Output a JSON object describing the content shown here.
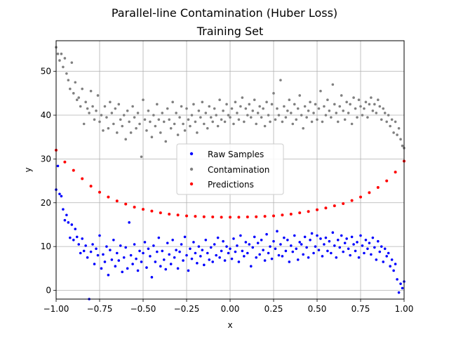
{
  "chart_data": {
    "type": "scatter",
    "title": "Parallel-line Contamination (Huber Loss)",
    "subtitle": "Training Set",
    "xlabel": "x",
    "ylabel": "y",
    "xlim": [
      -1.0,
      1.0
    ],
    "ylim": [
      -2.0,
      57.0
    ],
    "xticks": [
      -1.0,
      -0.75,
      -0.5,
      -0.25,
      0.0,
      0.25,
      0.5,
      0.75,
      1.0
    ],
    "xtick_labels": [
      "−1.00",
      "−0.75",
      "−0.50",
      "−0.25",
      "0.00",
      "0.25",
      "0.50",
      "0.75",
      "1.00"
    ],
    "yticks": [
      0,
      10,
      20,
      30,
      40,
      50
    ],
    "ytick_labels": [
      "0",
      "10",
      "20",
      "30",
      "40",
      "50"
    ],
    "grid": true,
    "legend_position": "center",
    "series": [
      {
        "name": "Raw Samples",
        "color": "#0000ff",
        "x": [
          -1.0,
          -0.99,
          -0.98,
          -0.97,
          -0.96,
          -0.95,
          -0.94,
          -0.93,
          -0.92,
          -0.91,
          -0.9,
          -0.89,
          -0.88,
          -0.87,
          -0.86,
          -0.85,
          -0.84,
          -0.83,
          -0.82,
          -0.81,
          -0.8,
          -0.79,
          -0.78,
          -0.77,
          -0.76,
          -0.75,
          -0.74,
          -0.73,
          -0.72,
          -0.71,
          -0.7,
          -0.69,
          -0.68,
          -0.67,
          -0.66,
          -0.65,
          -0.64,
          -0.63,
          -0.62,
          -0.61,
          -0.6,
          -0.59,
          -0.58,
          -0.57,
          -0.56,
          -0.55,
          -0.54,
          -0.53,
          -0.52,
          -0.51,
          -0.5,
          -0.49,
          -0.48,
          -0.47,
          -0.46,
          -0.45,
          -0.44,
          -0.43,
          -0.42,
          -0.41,
          -0.4,
          -0.39,
          -0.38,
          -0.37,
          -0.36,
          -0.35,
          -0.34,
          -0.33,
          -0.32,
          -0.31,
          -0.3,
          -0.29,
          -0.28,
          -0.27,
          -0.26,
          -0.25,
          -0.24,
          -0.23,
          -0.22,
          -0.21,
          -0.2,
          -0.19,
          -0.18,
          -0.17,
          -0.16,
          -0.15,
          -0.14,
          -0.13,
          -0.12,
          -0.11,
          -0.1,
          -0.09,
          -0.08,
          -0.07,
          -0.06,
          -0.05,
          -0.04,
          -0.03,
          -0.02,
          -0.01,
          0.0,
          0.01,
          0.02,
          0.03,
          0.04,
          0.05,
          0.06,
          0.07,
          0.08,
          0.09,
          0.1,
          0.11,
          0.12,
          0.13,
          0.14,
          0.15,
          0.16,
          0.17,
          0.18,
          0.19,
          0.2,
          0.21,
          0.22,
          0.23,
          0.24,
          0.25,
          0.26,
          0.27,
          0.28,
          0.29,
          0.3,
          0.31,
          0.32,
          0.33,
          0.34,
          0.35,
          0.36,
          0.37,
          0.38,
          0.39,
          0.4,
          0.41,
          0.42,
          0.43,
          0.44,
          0.45,
          0.46,
          0.47,
          0.48,
          0.49,
          0.5,
          0.51,
          0.52,
          0.53,
          0.54,
          0.55,
          0.56,
          0.57,
          0.58,
          0.59,
          0.6,
          0.61,
          0.62,
          0.63,
          0.64,
          0.65,
          0.66,
          0.67,
          0.68,
          0.69,
          0.7,
          0.71,
          0.72,
          0.73,
          0.74,
          0.75,
          0.76,
          0.77,
          0.78,
          0.79,
          0.8,
          0.81,
          0.82,
          0.83,
          0.84,
          0.85,
          0.86,
          0.87,
          0.88,
          0.89,
          0.9,
          0.91,
          0.92,
          0.93,
          0.94,
          0.95,
          0.96,
          0.97,
          0.98,
          0.99,
          1.0
        ],
        "y": [
          23.0,
          28.4,
          22.0,
          21.5,
          18.5,
          16.0,
          17.2,
          15.5,
          12.0,
          15.0,
          11.5,
          14.0,
          12.2,
          10.5,
          8.5,
          11.8,
          9.0,
          10.2,
          7.5,
          -2.0,
          8.8,
          10.5,
          6.0,
          9.5,
          8.0,
          12.5,
          5.0,
          8.2,
          6.5,
          10.0,
          3.5,
          9.2,
          7.0,
          11.5,
          5.5,
          8.5,
          6.8,
          10.2,
          4.2,
          7.5,
          9.8,
          5.0,
          15.5,
          8.0,
          6.0,
          10.5,
          7.2,
          4.5,
          9.0,
          6.5,
          8.5,
          11.0,
          5.2,
          9.5,
          7.8,
          3.0,
          10.2,
          6.5,
          8.8,
          12.0,
          5.5,
          9.0,
          7.0,
          4.8,
          10.8,
          8.2,
          6.0,
          11.5,
          7.5,
          9.2,
          5.0,
          8.8,
          10.5,
          6.8,
          12.2,
          8.0,
          4.5,
          9.5,
          7.2,
          11.0,
          8.5,
          6.2,
          10.0,
          7.8,
          9.2,
          5.8,
          11.5,
          8.5,
          7.0,
          9.8,
          6.5,
          10.5,
          8.0,
          12.0,
          7.5,
          9.0,
          11.2,
          6.8,
          10.0,
          8.5,
          9.5,
          7.2,
          11.8,
          8.8,
          10.2,
          6.5,
          12.5,
          9.0,
          7.8,
          11.0,
          8.5,
          10.5,
          5.5,
          9.8,
          12.2,
          7.5,
          10.8,
          8.2,
          11.5,
          9.2,
          6.8,
          12.8,
          8.5,
          10.0,
          7.2,
          11.2,
          9.5,
          13.5,
          8.0,
          10.5,
          7.8,
          12.0,
          9.0,
          11.5,
          6.5,
          10.2,
          8.8,
          12.5,
          9.5,
          7.0,
          11.0,
          10.5,
          8.2,
          12.2,
          9.8,
          7.5,
          11.5,
          13.0,
          8.5,
          10.0,
          12.5,
          9.2,
          11.8,
          7.8,
          10.5,
          12.0,
          9.0,
          11.2,
          8.5,
          13.2,
          10.2,
          7.5,
          11.5,
          9.8,
          12.5,
          8.8,
          10.8,
          11.8,
          9.5,
          8.0,
          12.2,
          10.5,
          9.0,
          11.0,
          7.5,
          12.5,
          10.2,
          8.5,
          11.5,
          9.5,
          10.8,
          8.2,
          12.0,
          9.8,
          7.0,
          11.2,
          8.8,
          10.0,
          6.5,
          9.5,
          7.8,
          8.5,
          5.5,
          7.0,
          4.5,
          6.0,
          2.5,
          -0.5,
          1.5,
          0.5,
          2.0
        ]
      },
      {
        "name": "Contamination",
        "color": "#808080",
        "x": [
          -1.0,
          -0.99,
          -0.98,
          -0.97,
          -0.96,
          -0.95,
          -0.94,
          -0.93,
          -0.92,
          -0.91,
          -0.9,
          -0.89,
          -0.88,
          -0.87,
          -0.86,
          -0.85,
          -0.84,
          -0.83,
          -0.82,
          -0.81,
          -0.8,
          -0.79,
          -0.78,
          -0.77,
          -0.76,
          -0.75,
          -0.74,
          -0.73,
          -0.72,
          -0.71,
          -0.7,
          -0.69,
          -0.68,
          -0.67,
          -0.66,
          -0.65,
          -0.64,
          -0.63,
          -0.62,
          -0.61,
          -0.6,
          -0.59,
          -0.58,
          -0.57,
          -0.56,
          -0.55,
          -0.54,
          -0.53,
          -0.52,
          -0.51,
          -0.5,
          -0.49,
          -0.48,
          -0.47,
          -0.46,
          -0.45,
          -0.44,
          -0.43,
          -0.42,
          -0.41,
          -0.4,
          -0.39,
          -0.38,
          -0.37,
          -0.36,
          -0.35,
          -0.34,
          -0.33,
          -0.32,
          -0.31,
          -0.3,
          -0.29,
          -0.28,
          -0.27,
          -0.26,
          -0.25,
          -0.24,
          -0.23,
          -0.22,
          -0.21,
          -0.2,
          -0.19,
          -0.18,
          -0.17,
          -0.16,
          -0.15,
          -0.14,
          -0.13,
          -0.12,
          -0.11,
          -0.1,
          -0.09,
          -0.08,
          -0.07,
          -0.06,
          -0.05,
          -0.04,
          -0.03,
          -0.02,
          -0.01,
          0.0,
          0.01,
          0.02,
          0.03,
          0.04,
          0.05,
          0.06,
          0.07,
          0.08,
          0.09,
          0.1,
          0.11,
          0.12,
          0.13,
          0.14,
          0.15,
          0.16,
          0.17,
          0.18,
          0.19,
          0.2,
          0.21,
          0.22,
          0.23,
          0.24,
          0.25,
          0.26,
          0.27,
          0.28,
          0.29,
          0.3,
          0.31,
          0.32,
          0.33,
          0.34,
          0.35,
          0.36,
          0.37,
          0.38,
          0.39,
          0.4,
          0.41,
          0.42,
          0.43,
          0.44,
          0.45,
          0.46,
          0.47,
          0.48,
          0.49,
          0.5,
          0.51,
          0.52,
          0.53,
          0.54,
          0.55,
          0.56,
          0.57,
          0.58,
          0.59,
          0.6,
          0.61,
          0.62,
          0.63,
          0.64,
          0.65,
          0.66,
          0.67,
          0.68,
          0.69,
          0.7,
          0.71,
          0.72,
          0.73,
          0.74,
          0.75,
          0.76,
          0.77,
          0.78,
          0.79,
          0.8,
          0.81,
          0.82,
          0.83,
          0.84,
          0.85,
          0.86,
          0.87,
          0.88,
          0.89,
          0.9,
          0.91,
          0.92,
          0.93,
          0.94,
          0.95,
          0.96,
          0.97,
          0.98,
          0.99,
          1.0
        ],
        "y": [
          55.5,
          54.0,
          52.5,
          54.0,
          51.0,
          53.0,
          49.5,
          48.0,
          46.0,
          52.0,
          45.0,
          47.5,
          43.5,
          44.0,
          42.0,
          46.0,
          38.0,
          43.0,
          41.5,
          40.5,
          45.5,
          42.0,
          39.0,
          41.0,
          44.5,
          38.5,
          40.0,
          36.5,
          42.0,
          39.5,
          37.0,
          43.0,
          40.5,
          38.0,
          41.5,
          36.0,
          42.5,
          39.0,
          37.5,
          40.0,
          34.5,
          41.0,
          38.5,
          36.0,
          42.0,
          39.5,
          37.0,
          40.5,
          38.0,
          30.5,
          43.5,
          39.0,
          36.5,
          41.0,
          38.5,
          35.0,
          40.0,
          37.5,
          42.5,
          39.0,
          36.0,
          40.5,
          38.5,
          34.0,
          41.5,
          39.0,
          37.0,
          43.0,
          38.0,
          40.5,
          35.5,
          39.5,
          42.0,
          38.0,
          36.5,
          41.5,
          39.0,
          37.5,
          40.0,
          42.5,
          38.5,
          36.0,
          41.0,
          39.5,
          43.0,
          38.0,
          40.5,
          37.0,
          42.0,
          39.5,
          38.5,
          41.5,
          40.0,
          37.5,
          43.5,
          39.0,
          41.0,
          38.5,
          42.5,
          40.0,
          39.5,
          41.5,
          38.0,
          43.0,
          40.5,
          39.0,
          42.0,
          44.0,
          38.5,
          41.5,
          40.0,
          42.5,
          39.5,
          41.0,
          43.5,
          38.0,
          40.5,
          42.0,
          39.5,
          41.5,
          37.5,
          43.0,
          40.0,
          38.5,
          42.5,
          45.0,
          39.0,
          41.5,
          40.0,
          48.0,
          38.5,
          42.0,
          39.5,
          41.0,
          43.5,
          40.5,
          38.0,
          42.5,
          39.0,
          41.5,
          44.5,
          40.0,
          37.0,
          42.0,
          39.5,
          41.0,
          43.0,
          38.5,
          40.5,
          42.5,
          39.0,
          41.5,
          45.5,
          38.5,
          42.0,
          40.0,
          43.5,
          41.0,
          39.5,
          47.0,
          42.5,
          40.5,
          38.5,
          42.0,
          44.5,
          41.0,
          39.0,
          43.0,
          40.5,
          42.5,
          38.0,
          44.0,
          41.5,
          39.5,
          43.5,
          42.0,
          40.0,
          41.5,
          43.0,
          39.5,
          42.5,
          44.0,
          41.0,
          42.5,
          40.5,
          43.5,
          42.0,
          39.0,
          41.5,
          40.5,
          38.5,
          40.0,
          37.5,
          39.0,
          36.0,
          38.5,
          35.5,
          37.0,
          34.5,
          33.0,
          32.5
        ]
      },
      {
        "name": "Predictions",
        "color": "#ff0000",
        "x": [
          -1.0,
          -0.95,
          -0.9,
          -0.85,
          -0.8,
          -0.75,
          -0.7,
          -0.65,
          -0.6,
          -0.55,
          -0.5,
          -0.45,
          -0.4,
          -0.35,
          -0.3,
          -0.25,
          -0.2,
          -0.15,
          -0.1,
          -0.05,
          0.0,
          0.05,
          0.1,
          0.15,
          0.2,
          0.25,
          0.3,
          0.35,
          0.4,
          0.45,
          0.5,
          0.55,
          0.6,
          0.65,
          0.7,
          0.75,
          0.8,
          0.85,
          0.9,
          0.95,
          1.0
        ],
        "y": [
          32.0,
          29.3,
          27.4,
          25.5,
          23.8,
          22.4,
          21.3,
          20.4,
          19.7,
          19.0,
          18.5,
          18.1,
          17.7,
          17.4,
          17.2,
          17.0,
          16.9,
          16.8,
          16.75,
          16.7,
          16.7,
          16.7,
          16.75,
          16.8,
          16.9,
          17.0,
          17.2,
          17.4,
          17.7,
          18.0,
          18.4,
          18.8,
          19.3,
          19.8,
          20.5,
          21.3,
          22.3,
          23.5,
          25.0,
          27.0,
          29.5
        ]
      }
    ]
  }
}
